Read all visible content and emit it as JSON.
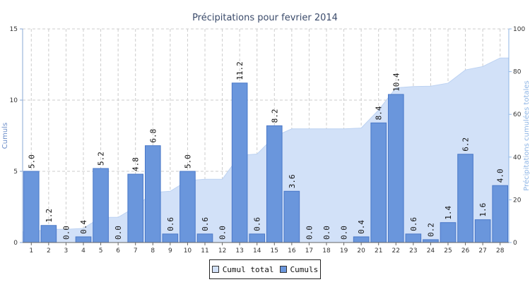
{
  "colors": {
    "bar": "#6a96dc",
    "bar_stroke": "#4a78c8",
    "area": "#d2e1f8",
    "area_stroke": "#bcd2f2",
    "grid": "#cccccc",
    "left_axis": "#8aa9d6",
    "right_axis": "#8fb6e6",
    "title": "#3a4a6a"
  },
  "chart_data": {
    "type": "bar",
    "title": "Précipitations pour fevrier 2014",
    "ylabel": "Cumuls",
    "y2label": "Précipitations cumulées totales",
    "xlabel": "",
    "ylim": [
      0,
      15
    ],
    "y2lim": [
      0,
      100
    ],
    "yticks": [
      "0",
      "5",
      "10",
      "15"
    ],
    "y2ticks": [
      "0",
      "20",
      "40",
      "60",
      "80",
      "100"
    ],
    "grid": true,
    "legend_position": "bottom-center",
    "categories": [
      "1",
      "2",
      "3",
      "4",
      "5",
      "6",
      "7",
      "8",
      "9",
      "10",
      "11",
      "12",
      "13",
      "14",
      "15",
      "16",
      "17",
      "18",
      "19",
      "20",
      "21",
      "22",
      "23",
      "24",
      "25",
      "26",
      "27",
      "28"
    ],
    "series": [
      {
        "name": "Cumuls",
        "type": "bar",
        "axis": "left",
        "values": [
          5.0,
          1.2,
          0.0,
          0.4,
          5.2,
          0.0,
          4.8,
          6.8,
          0.6,
          5.0,
          0.6,
          0.0,
          11.2,
          0.6,
          8.2,
          3.6,
          0.0,
          0.0,
          0.0,
          0.4,
          8.4,
          10.4,
          0.6,
          0.2,
          1.4,
          6.2,
          1.6,
          4.0
        ],
        "labels": [
          "5.0",
          "1.2",
          "0.0",
          "0.4",
          "5.2",
          "0.0",
          "4.8",
          "6.8",
          "0.6",
          "5.0",
          "0.6",
          "0.0",
          "11.2",
          "0.6",
          "8.2",
          "3.6",
          "0.0",
          "0.0",
          "0.0",
          "0.4",
          "8.4",
          "10.4",
          "0.6",
          "0.2",
          "1.4",
          "6.2",
          "1.6",
          "4.0"
        ]
      },
      {
        "name": "Cumul total",
        "type": "area",
        "axis": "right",
        "values": [
          5.0,
          6.2,
          6.2,
          6.6,
          11.8,
          11.8,
          16.6,
          23.4,
          24.0,
          29.0,
          29.6,
          29.6,
          40.8,
          41.4,
          49.6,
          53.2,
          53.2,
          53.2,
          53.2,
          53.6,
          62.0,
          72.4,
          73.0,
          73.2,
          74.6,
          80.8,
          82.4,
          86.4
        ]
      }
    ]
  },
  "legend": {
    "items": [
      {
        "label": "Cumul total",
        "color": "#d2e1f8"
      },
      {
        "label": "Cumuls",
        "color": "#6a96dc"
      }
    ]
  }
}
